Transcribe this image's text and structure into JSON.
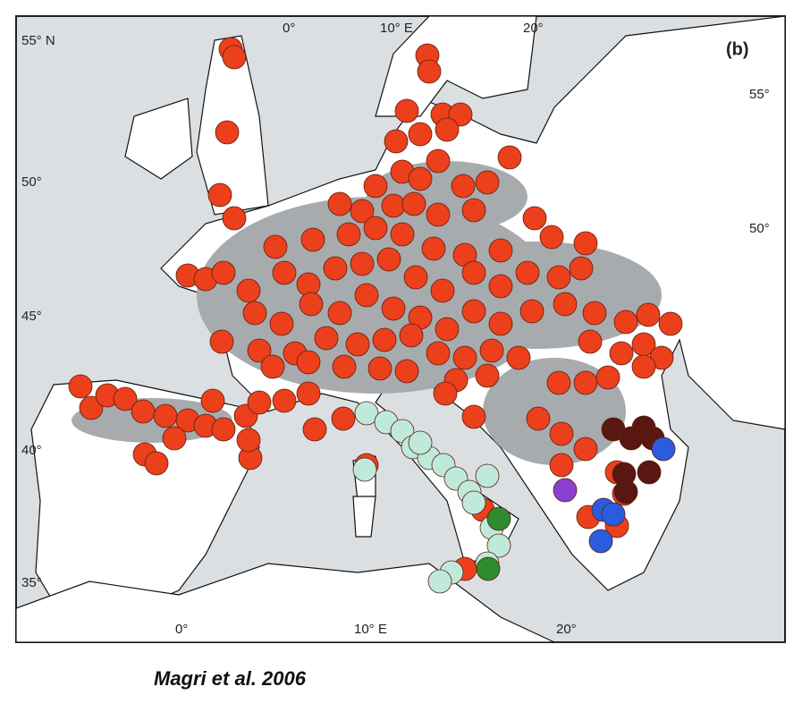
{
  "map": {
    "panel_label": "(b)",
    "top_labels": [
      "55° N",
      "0°",
      "10° E",
      "20°"
    ],
    "left_labels": [
      "50°",
      "45°",
      "40°",
      "35°"
    ],
    "right_labels": [
      "55°",
      "50°"
    ],
    "bottom_labels": [
      "0°",
      "10° E",
      "20°"
    ]
  },
  "caption": "Magri et al. 2006"
}
